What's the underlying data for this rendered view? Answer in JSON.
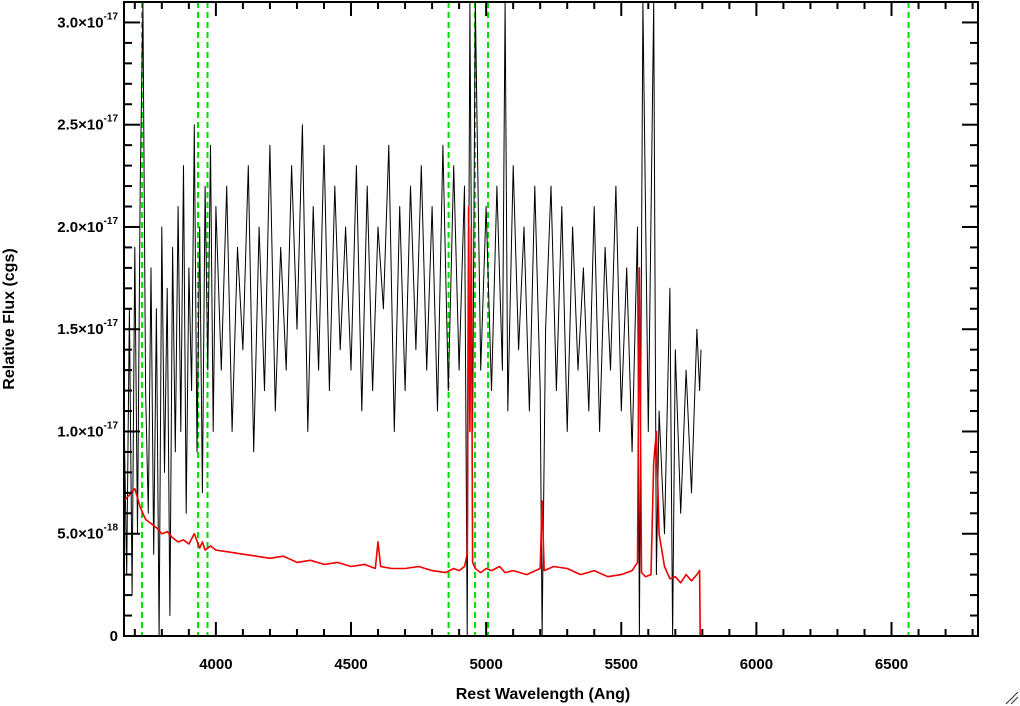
{
  "chart_data": {
    "type": "line",
    "title": "",
    "xlabel": "Rest Wavelength (Ang)",
    "ylabel": "Relative Flux (cgs)",
    "xlim": [
      3660,
      6820
    ],
    "ylim": [
      0,
      3.1e-17
    ],
    "x_ticks": [
      {
        "value": 4000,
        "label": "4000"
      },
      {
        "value": 4500,
        "label": "4500"
      },
      {
        "value": 5000,
        "label": "5000"
      },
      {
        "value": 5500,
        "label": "5500"
      },
      {
        "value": 6000,
        "label": "6000"
      },
      {
        "value": 6500,
        "label": "6500"
      }
    ],
    "y_ticks": [
      {
        "value": 0,
        "mantissa": "0",
        "exponent": ""
      },
      {
        "value": 5e-18,
        "mantissa": "5.0×10",
        "exponent": "-18"
      },
      {
        "value": 1e-17,
        "mantissa": "1.0×10",
        "exponent": "-17"
      },
      {
        "value": 1.5e-17,
        "mantissa": "1.5×10",
        "exponent": "-17"
      },
      {
        "value": 2e-17,
        "mantissa": "2.0×10",
        "exponent": "-17"
      },
      {
        "value": 2.5e-17,
        "mantissa": "2.5×10",
        "exponent": "-17"
      },
      {
        "value": 3e-17,
        "mantissa": "3.0×10",
        "exponent": "-17"
      }
    ],
    "grid": false,
    "legend": "none",
    "series": [
      {
        "color": "#000000",
        "x": [
          3660,
          3670,
          3680,
          3690,
          3700,
          3710,
          3720,
          3730,
          3740,
          3750,
          3760,
          3770,
          3780,
          3790,
          3800,
          3810,
          3820,
          3830,
          3840,
          3850,
          3860,
          3870,
          3880,
          3890,
          3900,
          3910,
          3920,
          3930,
          3940,
          3950,
          3960,
          3970,
          3980,
          3990,
          4000,
          4020,
          4040,
          4060,
          4080,
          4100,
          4120,
          4140,
          4160,
          4180,
          4200,
          4220,
          4240,
          4260,
          4280,
          4300,
          4320,
          4340,
          4360,
          4380,
          4400,
          4420,
          4440,
          4460,
          4480,
          4500,
          4520,
          4540,
          4560,
          4580,
          4600,
          4620,
          4640,
          4660,
          4680,
          4700,
          4720,
          4740,
          4760,
          4780,
          4800,
          4820,
          4840,
          4860,
          4880,
          4900,
          4920,
          4930,
          4940,
          4950,
          4960,
          4980,
          5000,
          5020,
          5040,
          5060,
          5070,
          5080,
          5100,
          5120,
          5140,
          5160,
          5180,
          5200,
          5207,
          5220,
          5240,
          5260,
          5280,
          5300,
          5320,
          5340,
          5360,
          5380,
          5400,
          5420,
          5440,
          5460,
          5480,
          5500,
          5520,
          5540,
          5560,
          5567,
          5580,
          5600,
          5620,
          5630,
          5640,
          5660,
          5680,
          5690,
          5700,
          5720,
          5740,
          5760,
          5780,
          5790,
          5795
        ],
        "y": [
          1.1e-17,
          3e-18,
          1.6e-17,
          2e-18,
          1.9e-17,
          5e-18,
          2.2e-17,
          3.1e-17,
          1.2e-17,
          6e-18,
          1.8e-17,
          4e-18,
          1.6e-17,
          0.0,
          2e-17,
          8e-18,
          1.7e-17,
          1e-18,
          1.9e-17,
          9e-18,
          2.1e-17,
          1e-17,
          2.3e-17,
          6e-18,
          1.8e-17,
          1.2e-17,
          2.5e-17,
          9e-18,
          2e-17,
          7e-18,
          2.2e-17,
          1.3e-17,
          2.4e-17,
          1e-17,
          2.1e-17,
          1.3e-17,
          2.2e-17,
          1e-17,
          1.9e-17,
          1.4e-17,
          2.3e-17,
          9e-18,
          2e-17,
          1.2e-17,
          2.4e-17,
          1.1e-17,
          1.9e-17,
          1.3e-17,
          2.3e-17,
          1.5e-17,
          2.5e-17,
          1e-17,
          2.1e-17,
          1.3e-17,
          2.4e-17,
          1.2e-17,
          2.2e-17,
          1.4e-17,
          2e-17,
          1.3e-17,
          2.3e-17,
          1.1e-17,
          2.2e-17,
          1.2e-17,
          2e-17,
          1.6e-17,
          2.4e-17,
          1e-17,
          2.1e-17,
          1.2e-17,
          2.2e-17,
          1.4e-17,
          2.3e-17,
          1.3e-17,
          2.1e-17,
          1.1e-17,
          2.4e-17,
          1.2e-17,
          2.3e-17,
          1.3e-17,
          2.2e-17,
          0.0,
          3.1e-17,
          1e-17,
          3.1e-17,
          1.3e-17,
          2.1e-17,
          1.2e-17,
          2.2e-17,
          1.3e-17,
          3.1e-17,
          1.1e-17,
          2.3e-17,
          1.4e-17,
          2e-17,
          1.1e-17,
          2.2e-17,
          1.2e-17,
          0.0,
          1.5e-17,
          2.2e-17,
          1.2e-17,
          2.1e-17,
          1e-17,
          2e-17,
          1.3e-17,
          1.8e-17,
          1.1e-17,
          2.1e-17,
          1e-17,
          1.9e-17,
          1.3e-17,
          2.2e-17,
          1.1e-17,
          1.8e-17,
          9e-18,
          2e-17,
          0.0,
          3.1e-17,
          1e-17,
          3.1e-17,
          3e-18,
          1.1e-17,
          5e-18,
          1.7e-17,
          0.0,
          1.4e-17,
          6e-18,
          1.3e-17,
          7e-18,
          1.5e-17,
          1.2e-17,
          1.4e-17
        ]
      },
      {
        "color": "#ee0000",
        "x": [
          3660,
          3680,
          3700,
          3720,
          3740,
          3760,
          3780,
          3800,
          3820,
          3840,
          3860,
          3880,
          3900,
          3920,
          3940,
          3950,
          3960,
          3980,
          4000,
          4050,
          4100,
          4150,
          4200,
          4250,
          4300,
          4350,
          4400,
          4450,
          4500,
          4550,
          4590,
          4600,
          4610,
          4650,
          4700,
          4750,
          4800,
          4850,
          4880,
          4900,
          4920,
          4930,
          4935,
          4940,
          4945,
          4950,
          4960,
          4980,
          5000,
          5020,
          5050,
          5070,
          5100,
          5150,
          5200,
          5207,
          5215,
          5250,
          5300,
          5350,
          5400,
          5450,
          5500,
          5540,
          5560,
          5567,
          5575,
          5590,
          5610,
          5620,
          5630,
          5640,
          5660,
          5680,
          5700,
          5720,
          5740,
          5760,
          5780,
          5790,
          5792,
          5800,
          6000,
          6500,
          6820
        ],
        "y": [
          6.6e-18,
          6.9e-18,
          7.2e-18,
          6.3e-18,
          5.7e-18,
          5.5e-18,
          5.3e-18,
          5e-18,
          5.1e-18,
          4.8e-18,
          4.6e-18,
          4.7e-18,
          4.5e-18,
          5e-18,
          4.3e-18,
          4.6e-18,
          4.2e-18,
          4.4e-18,
          4.2e-18,
          4.1e-18,
          4e-18,
          3.9e-18,
          3.8e-18,
          3.9e-18,
          3.6e-18,
          3.7e-18,
          3.5e-18,
          3.6e-18,
          3.4e-18,
          3.5e-18,
          3.3e-18,
          4.6e-18,
          3.4e-18,
          3.3e-18,
          3.3e-18,
          3.4e-18,
          3.2e-18,
          3.1e-18,
          3.3e-18,
          3.2e-18,
          3.4e-18,
          4e-18,
          2.1e-17,
          1e-17,
          2e-17,
          3.6e-18,
          3.3e-18,
          3.1e-18,
          3.3e-18,
          3.2e-18,
          3.4e-18,
          3.1e-18,
          3.2e-18,
          3e-18,
          3.3e-18,
          6.6e-18,
          3.2e-18,
          3.4e-18,
          3.3e-18,
          3e-18,
          3.2e-18,
          2.9e-18,
          3e-18,
          3.2e-18,
          3.6e-18,
          1.8e-17,
          3.1e-18,
          2.9e-18,
          3e-18,
          8.5e-18,
          1e-17,
          5e-18,
          3.4e-18,
          2.8e-18,
          2.9e-18,
          2.6e-18,
          3e-18,
          2.7e-18,
          3e-18,
          3.2e-18,
          0,
          0,
          0,
          0,
          0
        ]
      }
    ],
    "annotations": {
      "vertical_lines": {
        "style": "dashed",
        "color": "#00dd00",
        "x": [
          3727,
          3934,
          3969,
          4861,
          4959,
          5007,
          6563
        ]
      }
    }
  }
}
